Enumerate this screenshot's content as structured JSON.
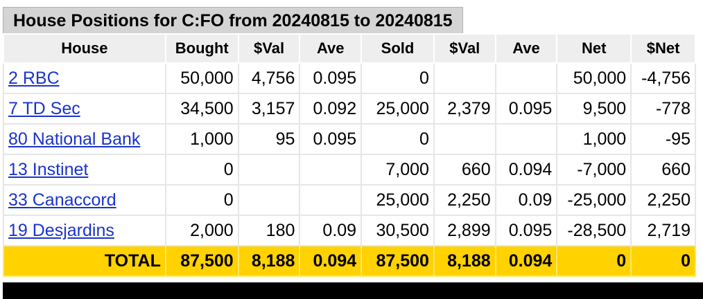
{
  "title": "House Positions for C:FO from 20240815 to 20240815",
  "headers": [
    "House",
    "Bought",
    "$Val",
    "Ave",
    "Sold",
    "$Val",
    "Ave",
    "Net",
    "$Net"
  ],
  "rows": [
    {
      "house": "2 RBC",
      "bought": "50,000",
      "bval": "4,756",
      "bave": "0.095",
      "sold": "0",
      "sval": "",
      "save": "",
      "net": "50,000",
      "dnet": "-4,756"
    },
    {
      "house": "7 TD Sec",
      "bought": "34,500",
      "bval": "3,157",
      "bave": "0.092",
      "sold": "25,000",
      "sval": "2,379",
      "save": "0.095",
      "net": "9,500",
      "dnet": "-778"
    },
    {
      "house": "80 National Bank",
      "bought": "1,000",
      "bval": "95",
      "bave": "0.095",
      "sold": "0",
      "sval": "",
      "save": "",
      "net": "1,000",
      "dnet": "-95"
    },
    {
      "house": "13 Instinet",
      "bought": "0",
      "bval": "",
      "bave": "",
      "sold": "7,000",
      "sval": "660",
      "save": "0.094",
      "net": "-7,000",
      "dnet": "660"
    },
    {
      "house": "33 Canaccord",
      "bought": "0",
      "bval": "",
      "bave": "",
      "sold": "25,000",
      "sval": "2,250",
      "save": "0.09",
      "net": "-25,000",
      "dnet": "2,250"
    },
    {
      "house": "19 Desjardins",
      "bought": "2,000",
      "bval": "180",
      "bave": "0.09",
      "sold": "30,500",
      "sval": "2,899",
      "save": "0.095",
      "net": "-28,500",
      "dnet": "2,719"
    }
  ],
  "total": {
    "label": "TOTAL",
    "bought": "87,500",
    "bval": "8,188",
    "bave": "0.094",
    "sold": "87,500",
    "sval": "8,188",
    "save": "0.094",
    "net": "0",
    "dnet": "0"
  }
}
